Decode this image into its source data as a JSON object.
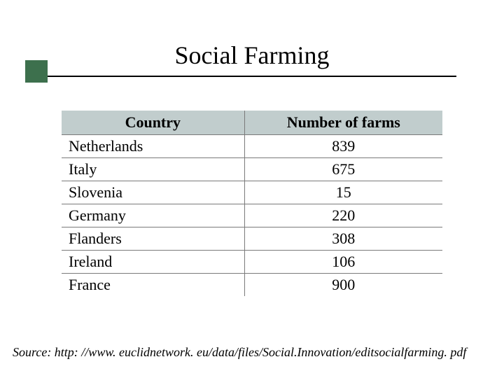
{
  "title": "Social Farming",
  "accent_color": "#3d704d",
  "table": {
    "header_bg": "#c1cdcd",
    "border_color": "#7a7a7a",
    "columns": [
      "Country",
      "Number of farms"
    ],
    "rows": [
      [
        "Netherlands",
        "839"
      ],
      [
        "Italy",
        "675"
      ],
      [
        "Slovenia",
        "15"
      ],
      [
        "Germany",
        "220"
      ],
      [
        "Flanders",
        "308"
      ],
      [
        "Ireland",
        "106"
      ],
      [
        "France",
        "900"
      ]
    ]
  },
  "source": "Source: http: //www. euclidnetwork. eu/data/files/Social.Innovation/editsocialfarming. pdf"
}
